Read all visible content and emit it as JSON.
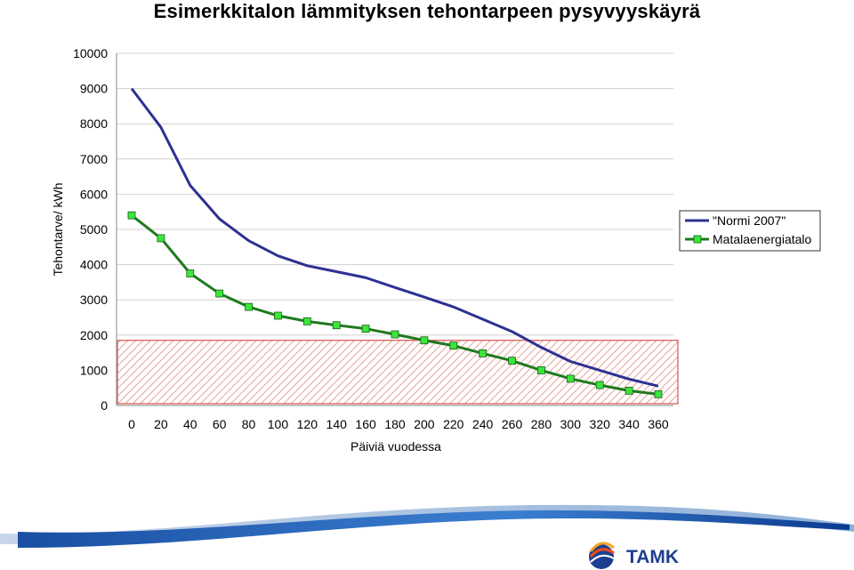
{
  "chart_data": {
    "type": "line",
    "title": "Esimerkkitalon lämmityksen tehontarpeen pysyvyyskäyrä",
    "xlabel": "Päiviä vuodessa",
    "ylabel": "Tehontarve/ kWh",
    "x_ticks": [
      "0",
      "20",
      "40",
      "60",
      "80",
      "100",
      "120",
      "140",
      "160",
      "180",
      "200",
      "220",
      "240",
      "260",
      "280",
      "300",
      "320",
      "340",
      "360"
    ],
    "y_ticks": [
      "0",
      "1000",
      "2000",
      "3000",
      "4000",
      "5000",
      "6000",
      "7000",
      "8000",
      "9000",
      "10000"
    ],
    "xlim": [
      0,
      360
    ],
    "ylim": [
      0,
      10000
    ],
    "grid": "horizontal",
    "legend_position": "right",
    "highlight_band": {
      "from": 0,
      "to": 1850,
      "color": "#d9534f"
    },
    "series": [
      {
        "name": "\"Normi 2007\"",
        "color": "#2e3192",
        "x": [
          0,
          20,
          40,
          60,
          80,
          100,
          120,
          140,
          160,
          180,
          200,
          220,
          240,
          260,
          280,
          300,
          320,
          340,
          360
        ],
        "values": [
          9000,
          7900,
          6250,
          5300,
          4680,
          4250,
          3970,
          3800,
          3630,
          3350,
          3080,
          2800,
          2450,
          2100,
          1650,
          1250,
          1000,
          750,
          550
        ],
        "markers": false
      },
      {
        "name": "Matalaenergiatalo",
        "color": "#1f7a1f",
        "marker_color": "#39e639",
        "x": [
          0,
          20,
          40,
          60,
          80,
          100,
          120,
          140,
          160,
          180,
          200,
          220,
          240,
          260,
          280,
          300,
          320,
          340,
          360
        ],
        "values": [
          5400,
          4750,
          3750,
          3180,
          2800,
          2550,
          2390,
          2280,
          2180,
          2020,
          1850,
          1700,
          1480,
          1270,
          1000,
          760,
          580,
          420,
          320
        ],
        "markers": true
      }
    ]
  },
  "branding": {
    "logo_text": "TAMK"
  }
}
